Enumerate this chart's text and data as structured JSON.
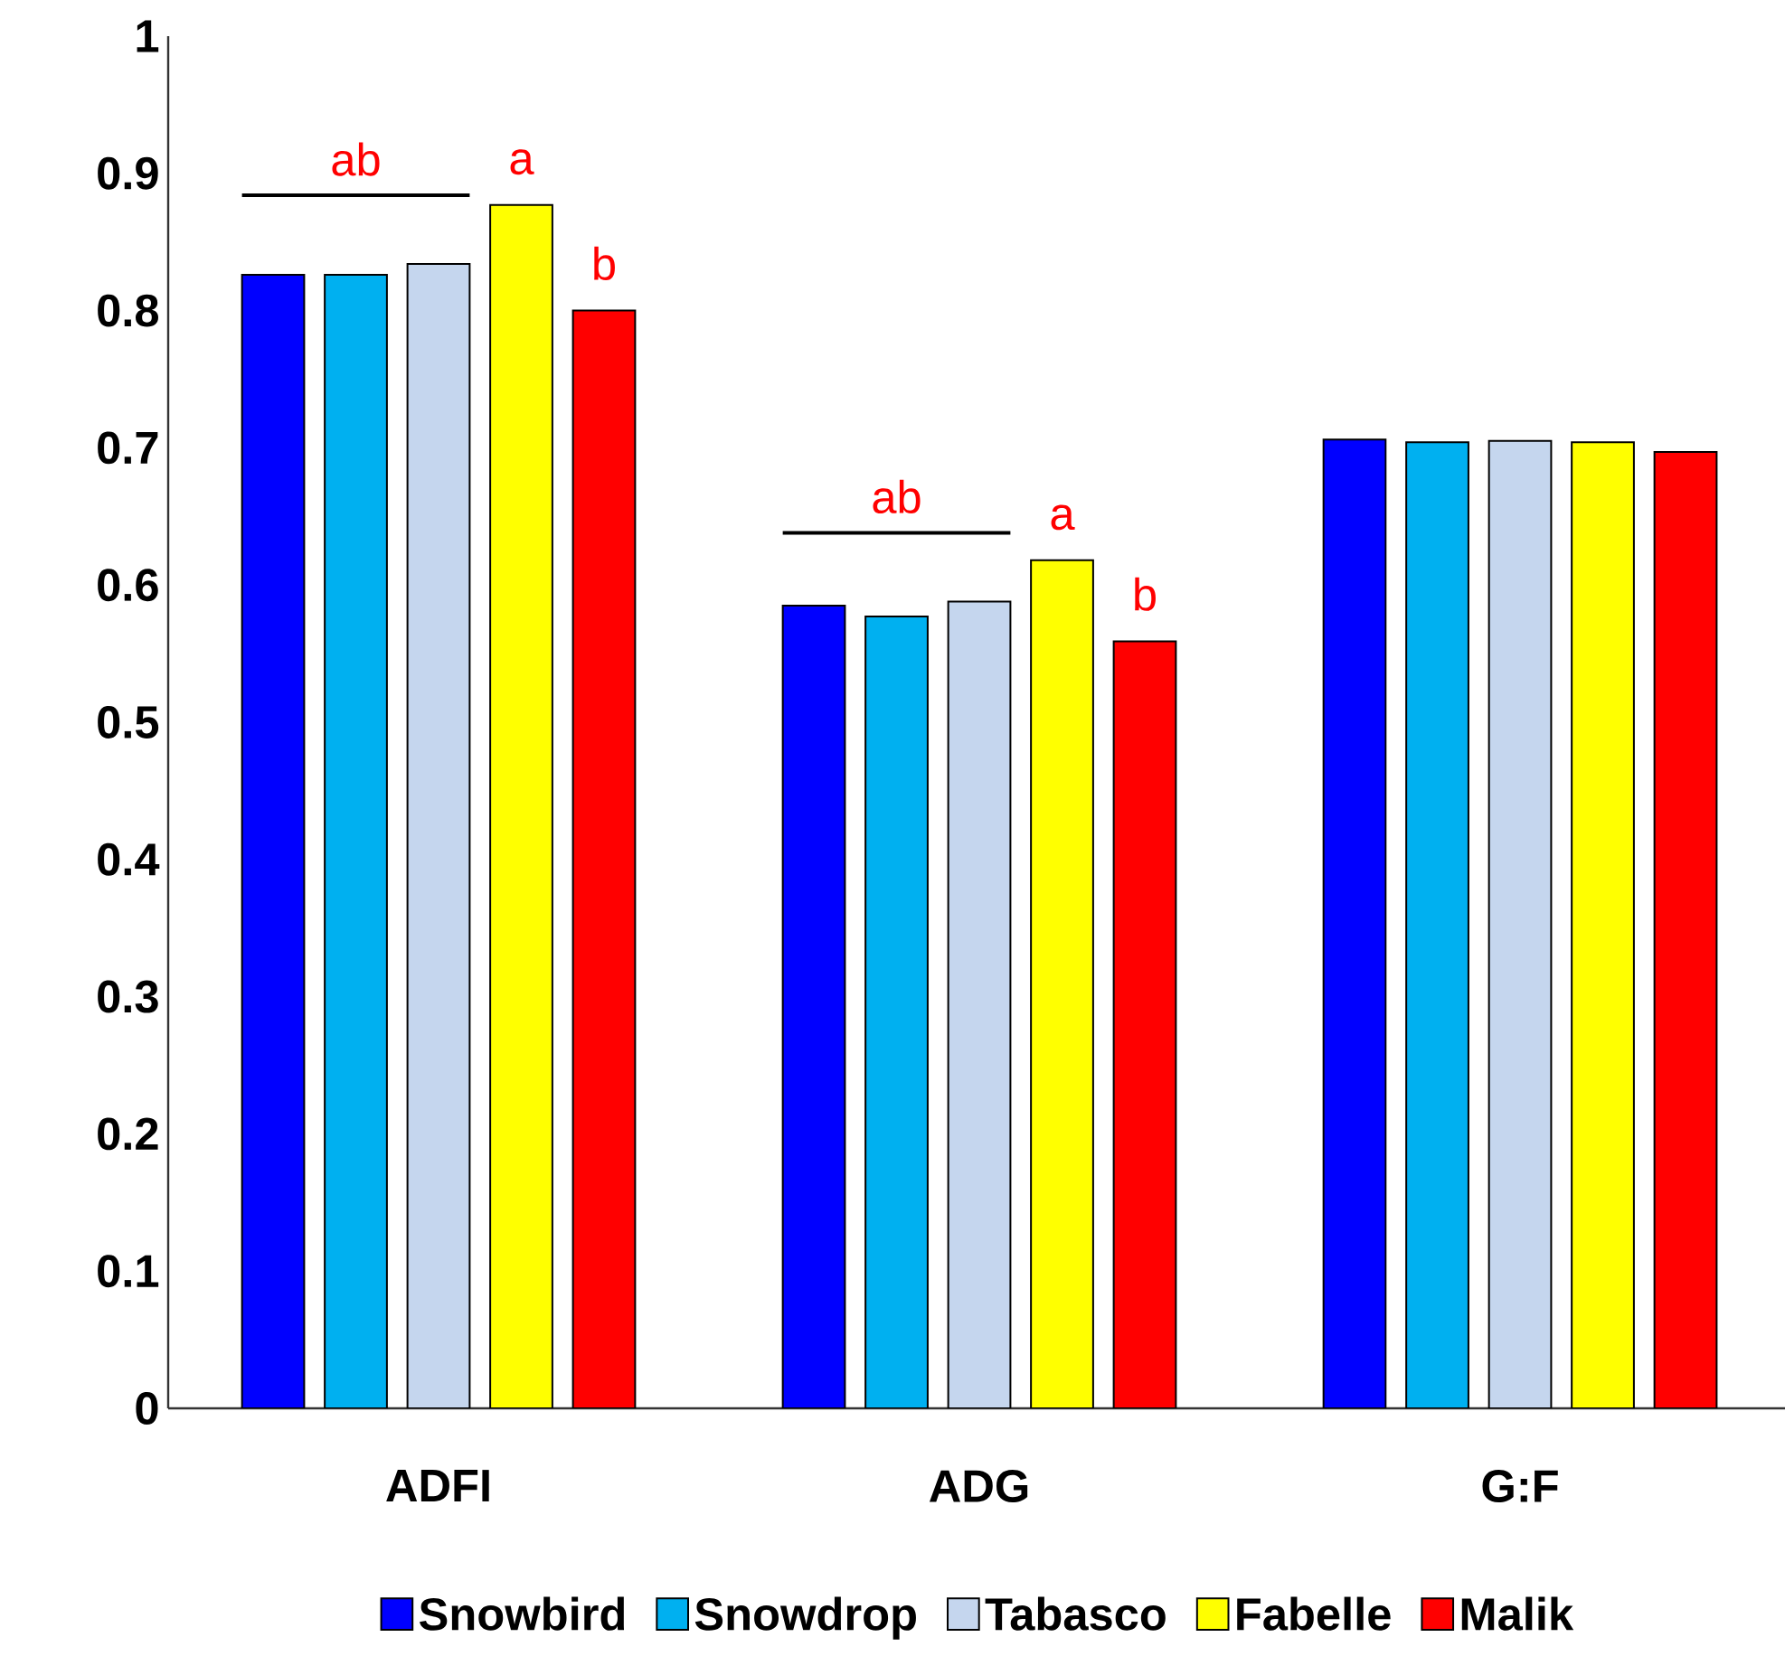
{
  "chart_data": {
    "type": "bar",
    "categories": [
      "ADFI",
      "ADG",
      "G:F"
    ],
    "series": [
      {
        "name": "Snowbird",
        "color": "#0000ff",
        "values": [
          0.826,
          0.585,
          0.706
        ]
      },
      {
        "name": "Snowdrop",
        "color": "#00b0f0",
        "values": [
          0.826,
          0.577,
          0.704
        ],
        "value_labels": [
          "ab",
          "ab",
          null
        ]
      },
      {
        "name": "Tabasco",
        "color": "#c5d6ee",
        "values": [
          0.834,
          0.588,
          0.705
        ]
      },
      {
        "name": "Fabelle",
        "color": "#ffff00",
        "values": [
          0.877,
          0.618,
          0.704
        ],
        "value_labels": [
          "a",
          "a",
          null
        ]
      },
      {
        "name": "Malik",
        "color": "#ff0000",
        "values": [
          0.8,
          0.559,
          0.697
        ],
        "value_labels": [
          "b",
          "b",
          null
        ]
      }
    ],
    "ylim": [
      0,
      1
    ],
    "yticks": [
      0,
      0.1,
      0.2,
      0.3,
      0.4,
      0.5,
      0.6,
      0.7,
      0.8,
      0.9,
      1
    ],
    "grid": false,
    "legend": "bottom"
  }
}
